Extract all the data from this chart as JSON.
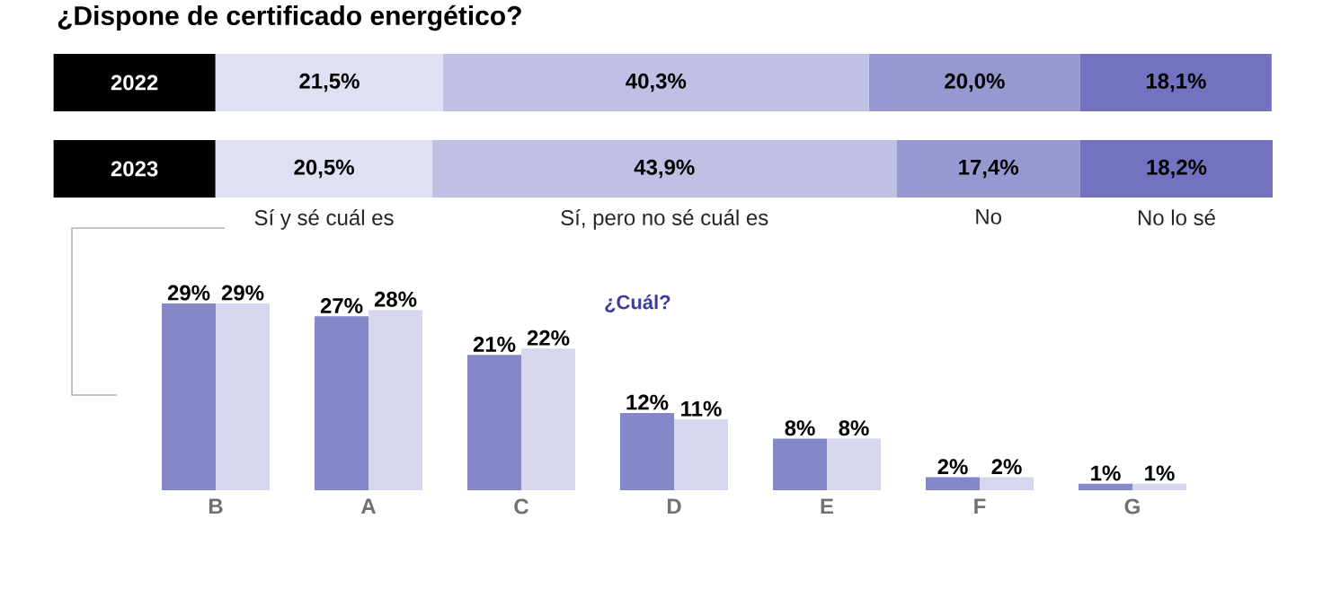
{
  "chart_data": [
    {
      "type": "bar",
      "orientation": "horizontal",
      "stacked": true,
      "title": "¿Dispone de certificado energético?",
      "categories": [
        "2022",
        "2023"
      ],
      "tick_labels": "y",
      "series": [
        {
          "name": "Sí y sé cuál es",
          "color": "#e0e0f4",
          "values": [
            21.5,
            20.5
          ],
          "value_labels": [
            "21,5%",
            "20,5%"
          ]
        },
        {
          "name": "Sí, pero no sé cuál es",
          "color": "#c0c0e4",
          "values": [
            40.3,
            43.9
          ],
          "value_labels": [
            "40,3%",
            "43,9%"
          ]
        },
        {
          "name": "No",
          "color": "#9898d0",
          "values": [
            20.0,
            17.4
          ],
          "value_labels": [
            "20,0%",
            "17,4%"
          ]
        },
        {
          "name": "No lo sé",
          "color": "#7272c0",
          "values": [
            18.1,
            18.2
          ],
          "value_labels": [
            "18,1%",
            "18,2%"
          ]
        }
      ]
    },
    {
      "type": "bar",
      "title": "¿Cuál?",
      "categories": [
        "B",
        "A",
        "C",
        "D",
        "E",
        "F",
        "G"
      ],
      "tick_labels": "x",
      "series": [
        {
          "color": "#8487c8",
          "values": [
            29,
            27,
            21,
            12,
            8,
            2,
            1
          ],
          "value_labels": [
            "29%",
            "27%",
            "21%",
            "12%",
            "8%",
            "2%",
            "1%"
          ]
        },
        {
          "color": "#d6d6ee",
          "values": [
            29,
            28,
            22,
            11,
            8,
            2,
            1
          ],
          "value_labels": [
            "29%",
            "28%",
            "22%",
            "11%",
            "8%",
            "2%",
            "1%"
          ]
        }
      ]
    }
  ]
}
